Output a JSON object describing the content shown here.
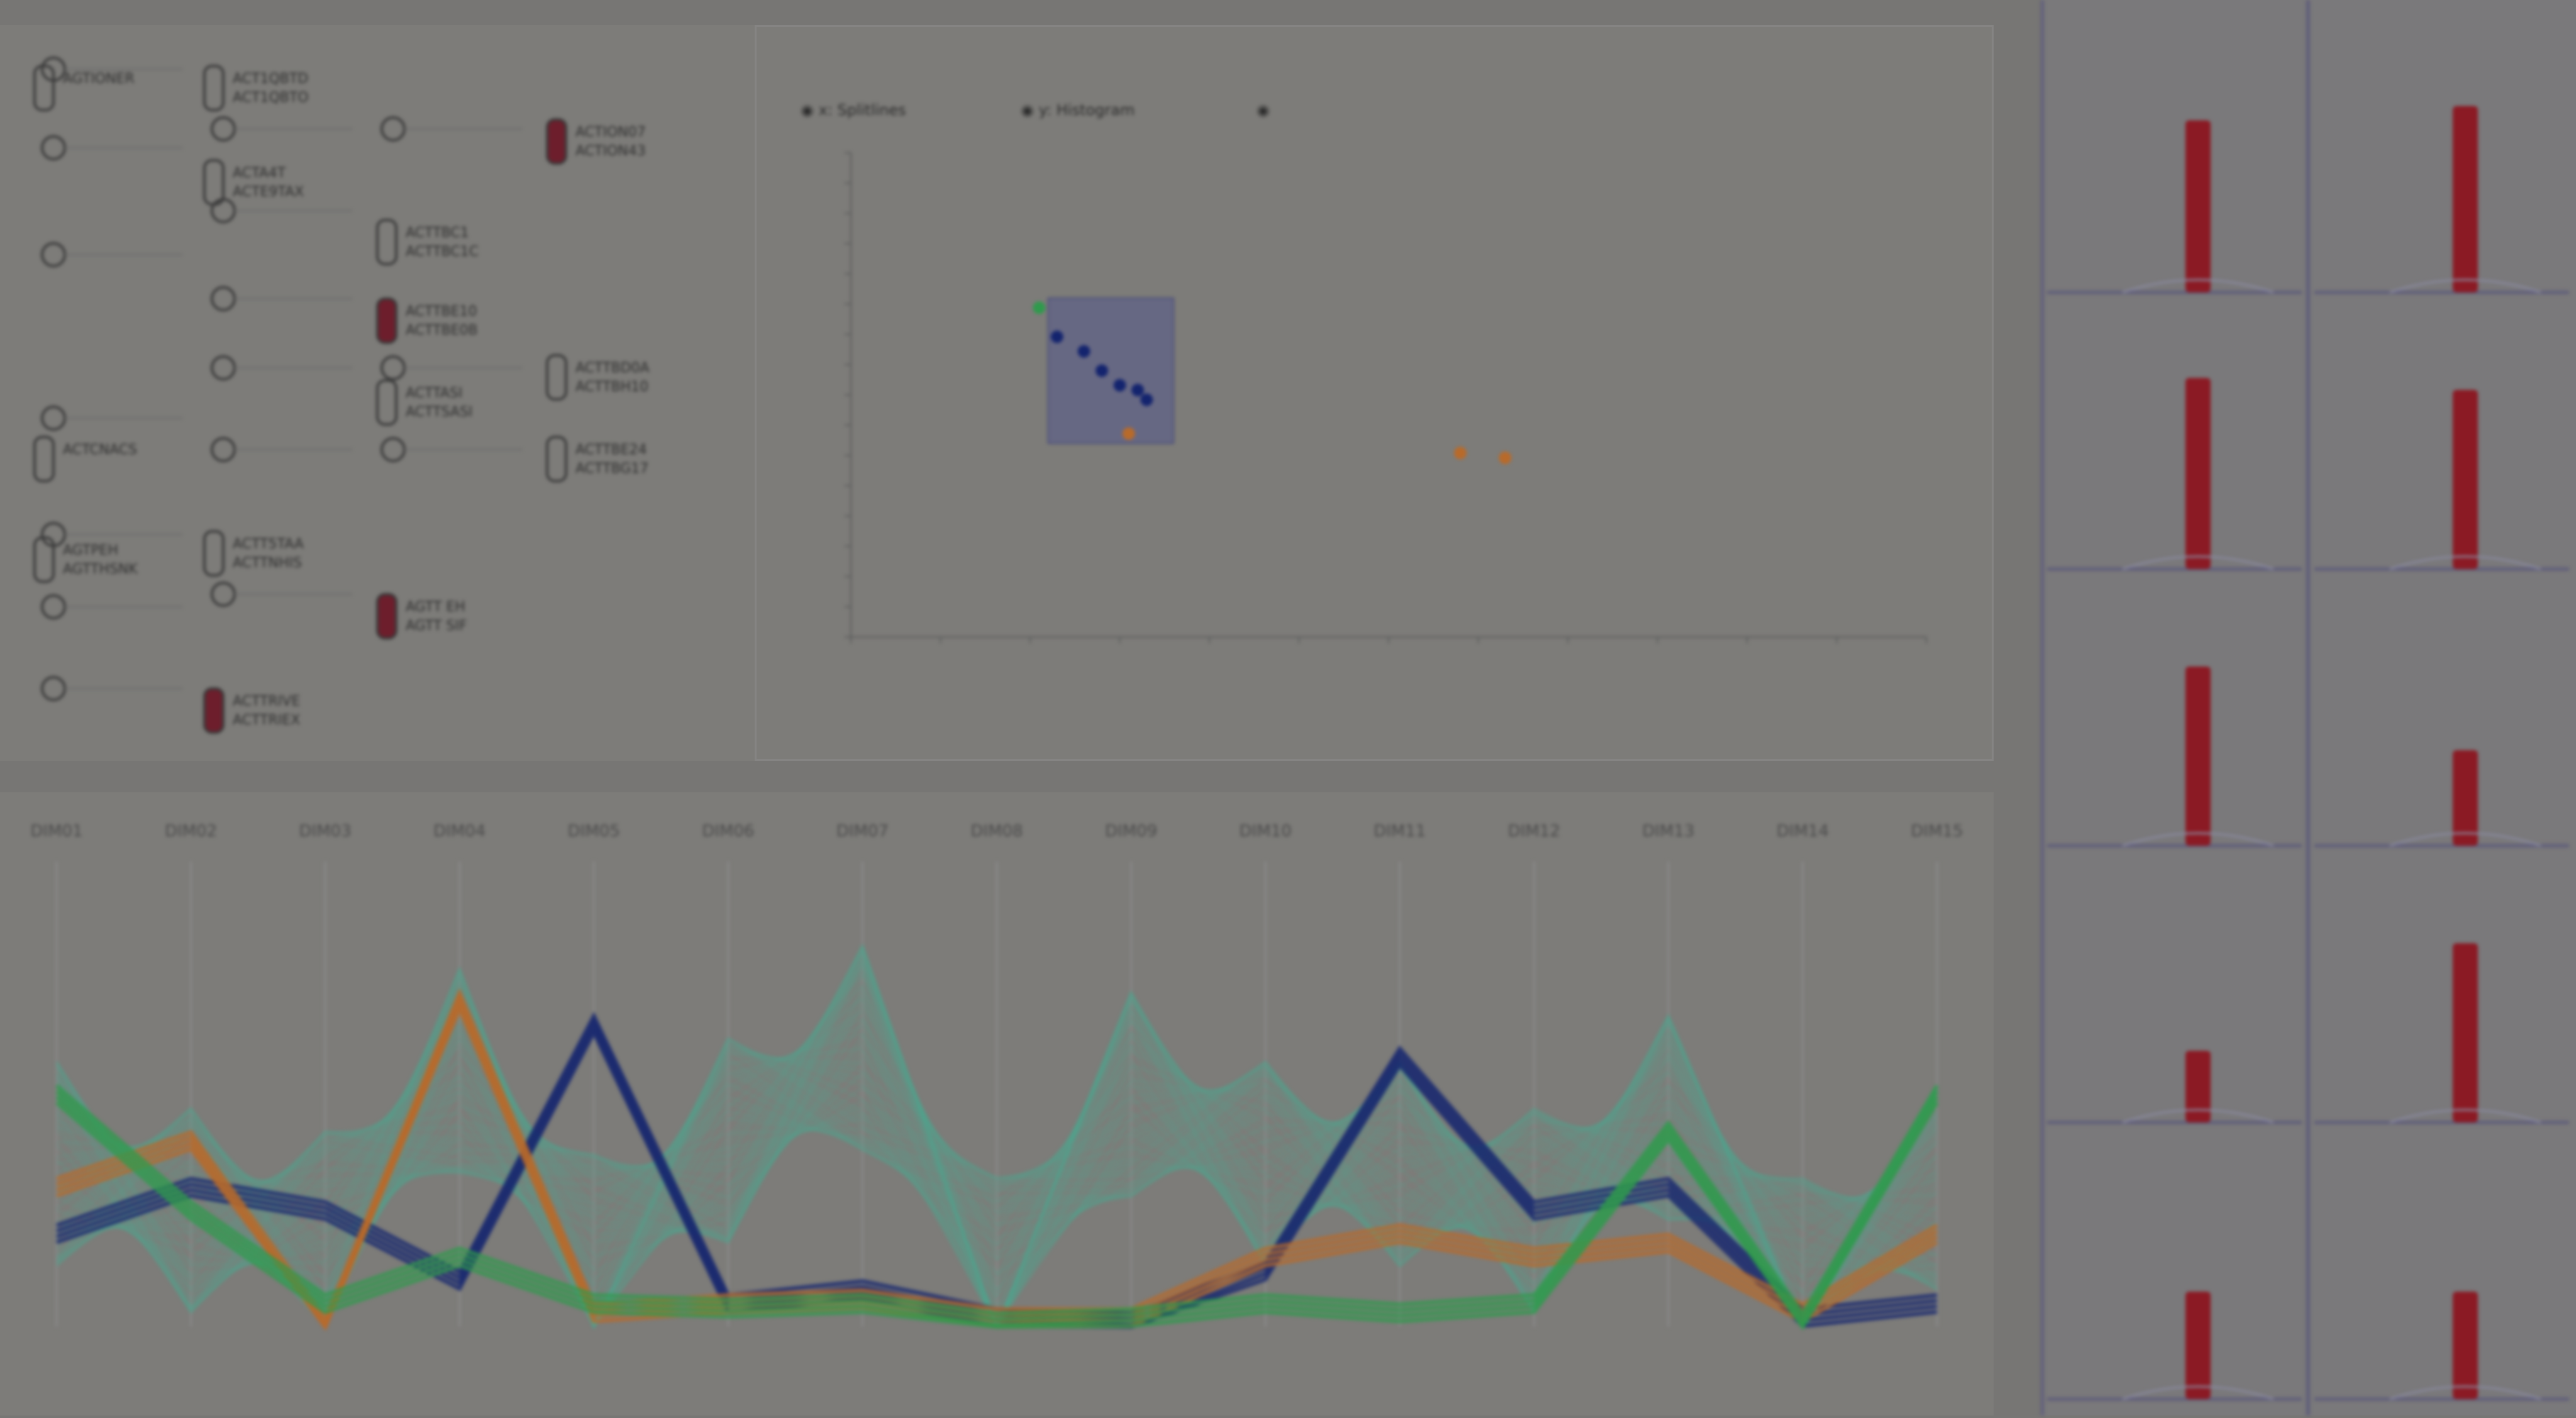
{
  "colors": {
    "background": "#777674",
    "panel": "#7d7c79",
    "maroon": "#6d1e2c",
    "red_hist": "#8b1a24",
    "blue_line": "#14246e",
    "orange_line": "#b86a2a",
    "green_line": "#2f9a4c",
    "teal_line": "#4aa88e",
    "frame": "#5f5d7a"
  },
  "tree": {
    "nodes": [
      {
        "labels": [
          "AGTIONER",
          ""
        ]
      },
      {
        "labels": [
          "ACT1QBTD",
          "ACT1QBTO"
        ]
      },
      {
        "labels": [
          "ACTA4T",
          "ACTE9TAX"
        ]
      },
      {
        "labels": [
          "ACTION07",
          "ACTION43"
        ]
      },
      {
        "labels": [
          "ACTTBC1",
          "ACTTBC1C"
        ]
      },
      {
        "labels": [
          "ACTTBE10",
          "ACTTBE0B"
        ]
      },
      {
        "labels": [
          "ACTTBD0A",
          "ACTTBH10"
        ]
      },
      {
        "labels": [
          "ACTTBE24",
          "ACTTBG17"
        ]
      },
      {
        "labels": [
          "ACTCNACS",
          ""
        ]
      },
      {
        "labels": [
          "ACTT5TAA",
          "ACTTNHIS"
        ]
      },
      {
        "labels": [
          "AGTPEH",
          "AGTTHSNK"
        ]
      },
      {
        "labels": [
          "AGTT EH",
          "AGTT SIF"
        ]
      },
      {
        "labels": [
          "ACTTRIVE",
          "ACTTRIEX"
        ]
      },
      {
        "labels": [
          "ACTTASI",
          "ACTTSASI"
        ]
      }
    ]
  },
  "scatter": {
    "legend": [
      "◉ x: Splitlines",
      "◉ y: Histogram",
      "◉"
    ]
  },
  "parallel": {
    "axes": [
      "DIM01",
      "DIM02",
      "DIM03",
      "DIM04",
      "DIM05",
      "DIM06",
      "DIM07",
      "DIM08",
      "DIM09",
      "DIM10",
      "DIM11",
      "DIM12",
      "DIM13",
      "DIM14",
      "DIM15"
    ]
  },
  "small_multiples": {
    "rows": 5,
    "cols": 2
  },
  "chart_data": [
    {
      "type": "scatter",
      "title": "",
      "xlabel": "",
      "ylabel": "",
      "series": [
        {
          "color": "#2f9a4c",
          "points": [
            [
              2.1,
              6.8
            ]
          ]
        },
        {
          "color": "#14246e",
          "points": [
            [
              2.3,
              6.2
            ],
            [
              2.6,
              5.9
            ],
            [
              2.8,
              5.5
            ],
            [
              3.0,
              5.2
            ],
            [
              3.2,
              5.1
            ],
            [
              3.3,
              4.9
            ]
          ]
        },
        {
          "color": "#b86a2a",
          "points": [
            [
              3.1,
              4.2
            ],
            [
              6.8,
              3.8
            ],
            [
              7.3,
              3.7
            ]
          ]
        }
      ],
      "selection_box": {
        "x": [
          2.2,
          3.6
        ],
        "y": [
          4.0,
          7.0
        ]
      }
    },
    {
      "type": "line",
      "title": "",
      "series": [
        {
          "name": "",
          "color": "#14246e",
          "values": [
            0.2,
            0.3,
            0.25,
            0.1,
            0.65,
            0.05,
            0.08,
            0.02,
            0.01,
            0.12,
            0.58,
            0.25,
            0.3,
            0.02,
            0.05
          ]
        },
        {
          "name": "",
          "color": "#b86a2a",
          "values": [
            0.3,
            0.4,
            0.0,
            0.7,
            0.03,
            0.05,
            0.06,
            0.02,
            0.02,
            0.15,
            0.2,
            0.15,
            0.18,
            0.03,
            0.2
          ]
        },
        {
          "name": "",
          "color": "#2f9a4c",
          "values": [
            0.5,
            0.25,
            0.05,
            0.15,
            0.05,
            0.04,
            0.05,
            0.01,
            0.02,
            0.05,
            0.03,
            0.05,
            0.42,
            0.01,
            0.5
          ]
        }
      ]
    }
  ]
}
